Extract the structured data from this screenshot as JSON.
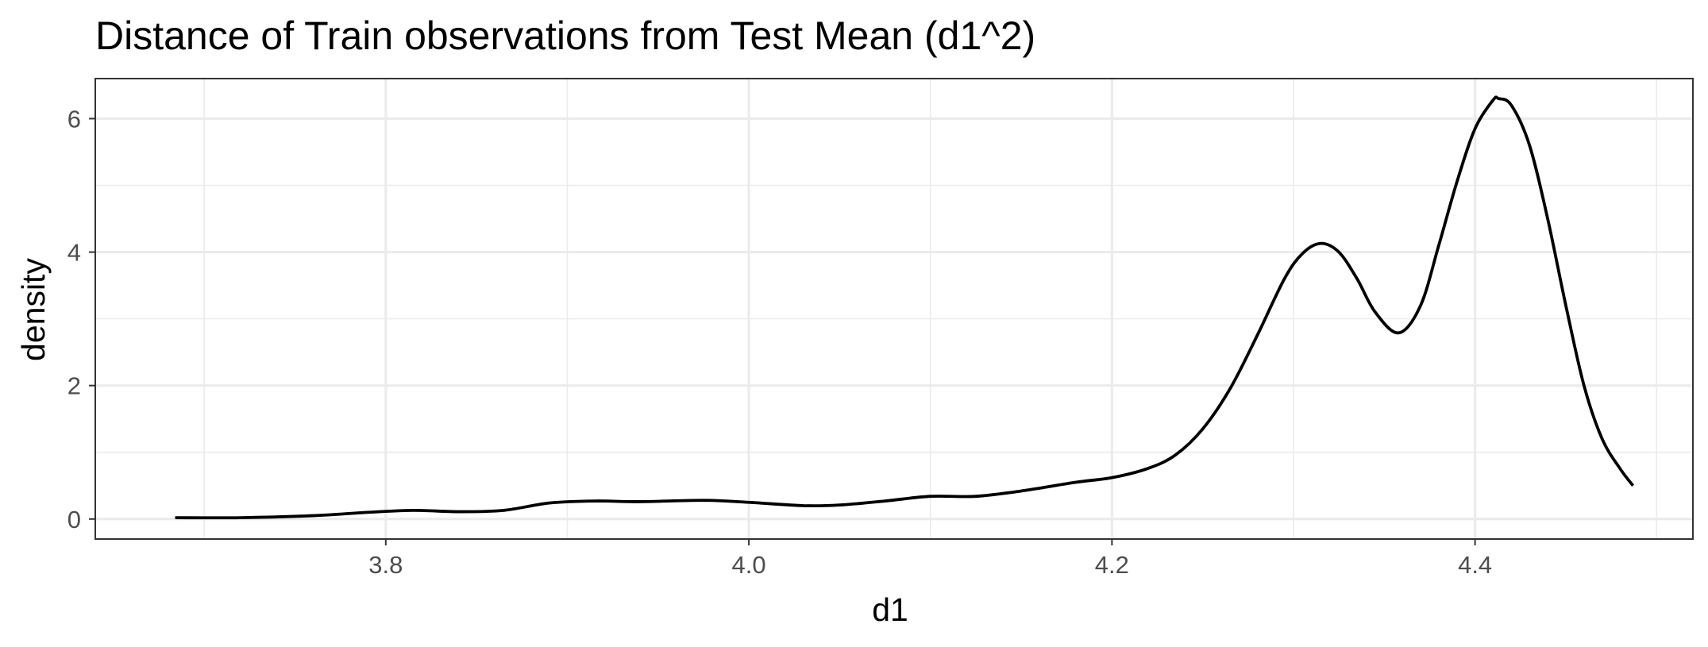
{
  "chart_data": {
    "type": "line",
    "title": "Distance of Train observations from Test Mean (d1^2)",
    "xlabel": "d1",
    "ylabel": "density",
    "xlim": [
      3.64,
      4.52
    ],
    "ylim": [
      -0.3,
      6.6
    ],
    "x_major_ticks": [
      3.8,
      4.0,
      4.2,
      4.4
    ],
    "x_minor_ticks": [
      3.7,
      3.9,
      4.1,
      4.3,
      4.5
    ],
    "y_major_ticks": [
      0,
      2,
      4,
      6
    ],
    "y_minor_ticks": [
      1,
      3,
      5
    ],
    "x_tick_labels": [
      "3.8",
      "4.0",
      "4.2",
      "4.4"
    ],
    "y_tick_labels": [
      "0",
      "2",
      "4",
      "6"
    ],
    "grid": true,
    "legend": "none",
    "series": [
      {
        "color": "#000000",
        "x": [
          3.684,
          3.72,
          3.76,
          3.79,
          3.815,
          3.84,
          3.865,
          3.89,
          3.915,
          3.94,
          3.975,
          4.0,
          4.03,
          4.05,
          4.075,
          4.1,
          4.125,
          4.15,
          4.18,
          4.2,
          4.22,
          4.235,
          4.25,
          4.265,
          4.28,
          4.295,
          4.305,
          4.315,
          4.325,
          4.335,
          4.345,
          4.358,
          4.37,
          4.38,
          4.39,
          4.4,
          4.41,
          4.413,
          4.42,
          4.43,
          4.44,
          4.45,
          4.46,
          4.47,
          4.48,
          4.487
        ],
        "y": [
          0.02,
          0.02,
          0.05,
          0.1,
          0.13,
          0.11,
          0.13,
          0.24,
          0.27,
          0.26,
          0.28,
          0.25,
          0.2,
          0.21,
          0.27,
          0.34,
          0.34,
          0.42,
          0.55,
          0.62,
          0.76,
          0.96,
          1.35,
          1.95,
          2.75,
          3.6,
          3.98,
          4.13,
          4.0,
          3.6,
          3.1,
          2.79,
          3.2,
          4.1,
          5.05,
          5.85,
          6.28,
          6.3,
          6.2,
          5.6,
          4.5,
          3.2,
          2.0,
          1.2,
          0.75,
          0.5
        ]
      }
    ]
  }
}
